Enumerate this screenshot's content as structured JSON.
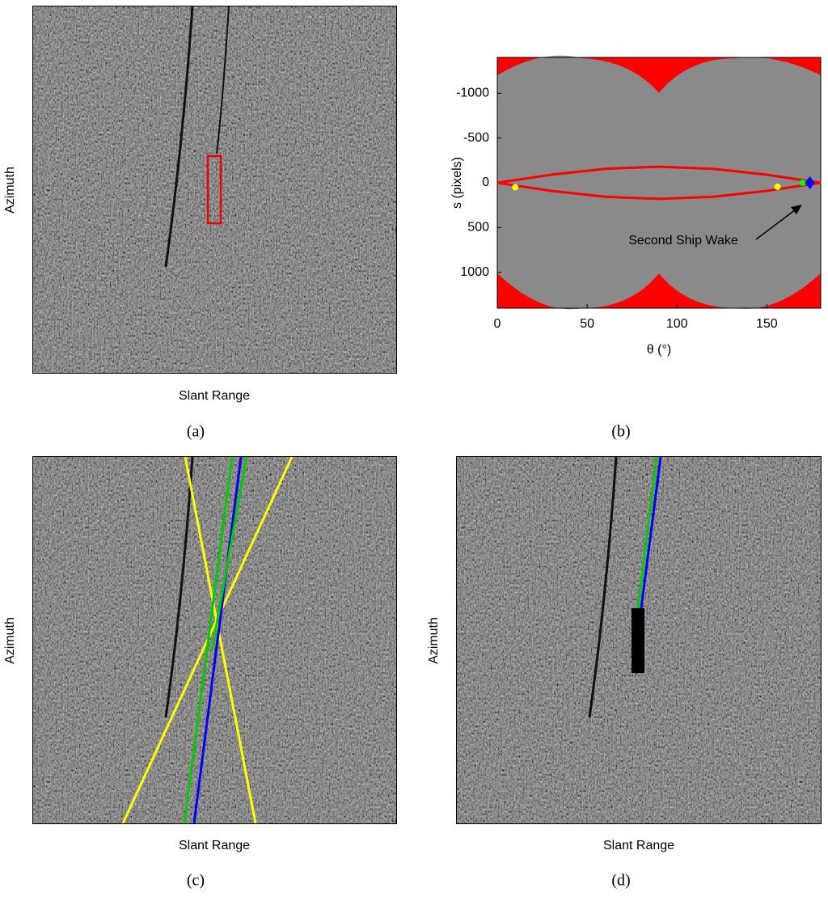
{
  "panels": [
    {
      "caption": "(a)",
      "x_label": "Slant Range",
      "y_label": "Azimuth"
    },
    {
      "caption": "(b)"
    },
    {
      "caption": "(c)",
      "x_label": "Slant Range",
      "y_label": "Azimuth"
    },
    {
      "caption": "(d)",
      "x_label": "Slant Range",
      "y_label": "Azimuth"
    }
  ],
  "chart_data": {
    "type": "line",
    "x_label": "θ (°)",
    "y_label": "s (pixels)",
    "annotation": "Second Ship Wake",
    "xlim": [
      0,
      180
    ],
    "ylim": [
      1400,
      -1400
    ],
    "xticks": [
      0,
      50,
      100,
      150
    ],
    "yticks": [
      -1000,
      -500,
      0,
      500,
      1000
    ],
    "series": [
      {
        "color": "#ff0000",
        "x": [
          0,
          30,
          60,
          90,
          120,
          150,
          180
        ],
        "values": [
          0,
          -90,
          -156,
          -180,
          -156,
          -90,
          0
        ]
      },
      {
        "color": "#ff0000",
        "x": [
          0,
          30,
          60,
          90,
          120,
          150,
          180
        ],
        "values": [
          0,
          90,
          156,
          180,
          156,
          90,
          0
        ]
      }
    ],
    "points": [
      {
        "color": "#ffff00",
        "marker": "circle",
        "x": [
          10,
          156
        ],
        "values": [
          50,
          45
        ]
      },
      {
        "color": "#00ff00",
        "marker": "circle",
        "x": [
          170
        ],
        "values": [
          0
        ]
      },
      {
        "color": "#0000ff",
        "marker": "diamond",
        "x": [
          174
        ],
        "values": [
          0
        ]
      }
    ]
  }
}
